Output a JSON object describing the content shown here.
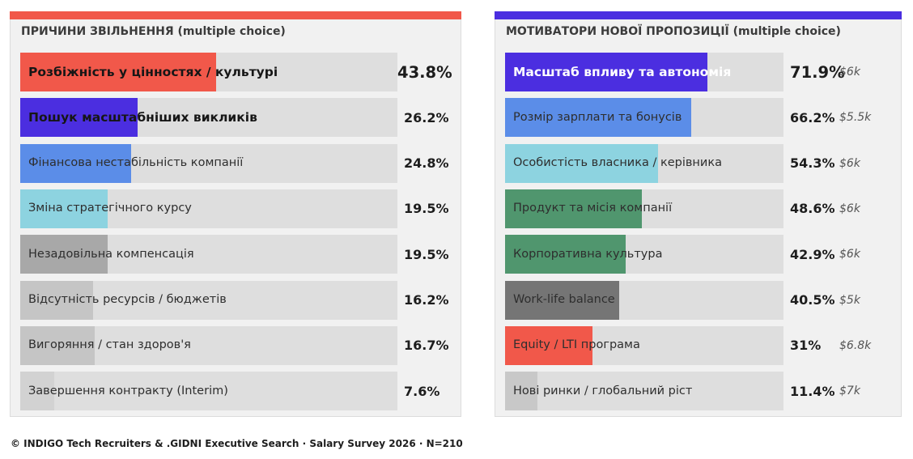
{
  "chart_data": [
    {
      "type": "bar",
      "title": "ПРИЧИНИ ЗВІЛЬНЕННЯ (multiple choice)",
      "accent_color": "#f1584a",
      "categories": [
        "Розбіжність у цінностях / культурі",
        "Пошук масштабніших викликів",
        "Фінансова нестабільність компанії",
        "Зміна стратегічного курсу",
        "Незадовільна компенсація",
        "Відсутність ресурсів / бюджетів",
        "Вигоряння / стан здоров'я",
        "Завершення контракту (Interim)"
      ],
      "values": [
        43.8,
        26.2,
        24.8,
        19.5,
        19.5,
        16.2,
        16.7,
        7.6
      ],
      "labels": [
        "43.8%",
        "26.2%",
        "24.8%",
        "19.5%",
        "19.5%",
        "16.2%",
        "16.7%",
        "7.6%"
      ],
      "colors": [
        "#f1584a",
        "#4b2ee0",
        "#5b8de8",
        "#8dd3e0",
        "#a8a8a8",
        "#c5c5c5",
        "#c5c5c5",
        "#d2d2d2"
      ],
      "xlim": [
        0,
        100
      ]
    },
    {
      "type": "bar",
      "title": "МОТИВАТОРИ НОВОЇ ПРОПОЗИЦІЇ (multiple choice)",
      "accent_color": "#4b2ee0",
      "categories": [
        "Масштаб впливу та автономія",
        "Розмір зарплати та бонусів",
        "Особистість власника / керівника",
        "Продукт та місія компанії",
        "Корпоративна культура",
        "Work-life balance",
        "Equity / LTI програма",
        "Нові ринки / глобальний ріст"
      ],
      "values": [
        71.9,
        66.2,
        54.3,
        48.6,
        42.9,
        40.5,
        31,
        11.4
      ],
      "labels": [
        "71.9%",
        "66.2%",
        "54.3%",
        "48.6%",
        "42.9%",
        "40.5%",
        "31%",
        "11.4%"
      ],
      "salaries": [
        "$6k",
        "$5.5k",
        "$6k",
        "$6k",
        "$6k",
        "$5k",
        "$6.8k",
        "$7k"
      ],
      "colors": [
        "#4b2ee0",
        "#5b8de8",
        "#8dd3e0",
        "#50966e",
        "#50966e",
        "#757575",
        "#f1584a",
        "#c8c8c8"
      ],
      "xlim": [
        0,
        100
      ]
    }
  ],
  "footer": "© INDIGO Tech Recruiters & .GIDNI Executive Search · Salary Survey 2026 · N=210"
}
